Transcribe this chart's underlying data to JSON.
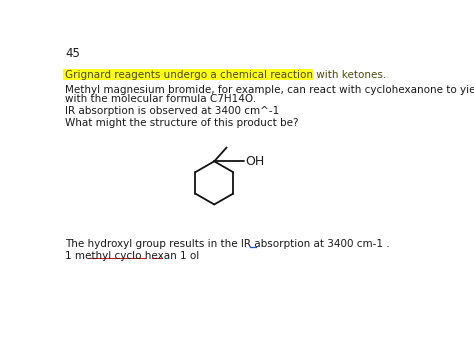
{
  "page_number": "45",
  "highlighted_text": "Grignard reagents undergo a chemical reaction with ketones.",
  "highlight_color": "#FFFF00",
  "highlight_text_color": "#4a4a10",
  "body_color": "#1a1a1a",
  "line1": "Methyl magnesium bromide, for example, can react with cyclohexanone to yield a product",
  "line2": "with the molecular formula C7H14O.",
  "line3": "IR absorption is observed at 3400 cm^-1",
  "line4": "What might the structure of this product be?",
  "line5": "The hydroxyl group results in the IR absorption at 3400 cm-1 .",
  "line6": "1 methyl cyclo hexan 1 ol",
  "bg_color": "#ffffff",
  "font_size_body": 7.5,
  "font_size_page": 8.5
}
